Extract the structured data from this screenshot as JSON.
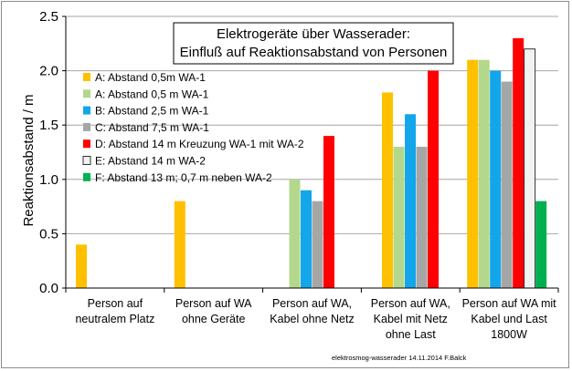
{
  "chart_data": {
    "type": "bar",
    "title": "Elektrogeräte über Wasserader:",
    "subtitle": "Einfluß auf Reaktionsabstand von Personen",
    "ylabel": "Reaktionsabstand / m",
    "ylim": [
      0,
      2.5
    ],
    "yticks": [
      "0.0",
      "0.5",
      "1.0",
      "1.5",
      "2.0",
      "2.5"
    ],
    "grid": true,
    "legend_position": "top-left",
    "categories": [
      [
        "Person auf",
        "neutralem Platz"
      ],
      [
        "Person auf WA",
        "ohne Geräte"
      ],
      [
        "Person auf WA,",
        "Kabel ohne Netz"
      ],
      [
        "Person auf WA,",
        "Kabel mit Netz",
        "ohne Last"
      ],
      [
        "Person auf WA mit",
        "Kabel und Last",
        "1800W"
      ]
    ],
    "series": [
      {
        "name": "A:  Abstand 0,5m  WA-1",
        "color": "#ffc000",
        "values": [
          0.4,
          0.8,
          null,
          1.8,
          2.1
        ]
      },
      {
        "name": "A:  Abstand 0,5 m  WA-1",
        "color": "#b3d88c",
        "values": [
          null,
          null,
          1.0,
          1.3,
          2.1
        ]
      },
      {
        "name": "B:  Abstand 2,5 m  WA-1",
        "color": "#13a6ea",
        "values": [
          null,
          null,
          0.9,
          1.6,
          2.0
        ]
      },
      {
        "name": "C:  Abstand 7,5 m  WA-1",
        "color": "#a6a6a6",
        "values": [
          null,
          null,
          0.8,
          1.3,
          1.9
        ]
      },
      {
        "name": "D:  Abstand 14 m  Kreuzung WA-1 mit WA-2",
        "color": "#ff0000",
        "values": [
          null,
          null,
          1.4,
          2.0,
          2.3
        ]
      },
      {
        "name": "E:  Abstand 14 m  WA-2",
        "color": "#f2f2f2",
        "values": [
          null,
          null,
          null,
          null,
          2.2
        ]
      },
      {
        "name": "F:  Abstand 13 m; 0,7 m neben WA-2",
        "color": "#00b050",
        "values": [
          null,
          null,
          null,
          null,
          0.8
        ]
      }
    ]
  },
  "footer": "elektrosmog-wasserader  14.11.2014 F.Balck"
}
